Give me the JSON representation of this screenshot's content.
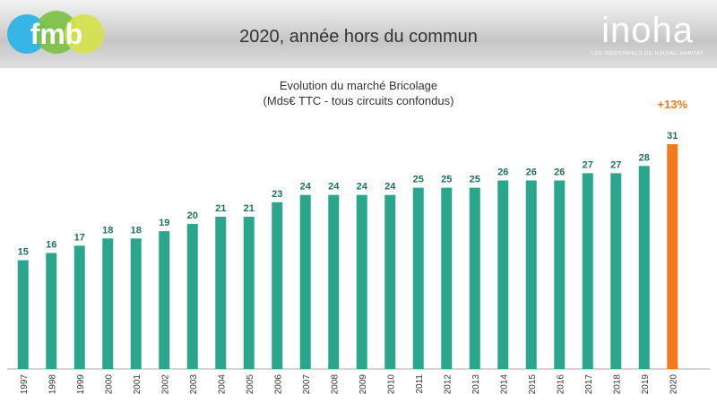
{
  "header": {
    "title": "2020, année hors du commun",
    "logo_left": {
      "text": "fmb"
    },
    "logo_right": {
      "text": "inoha",
      "tagline": "LES INDUSTRIELS DU NOUVEL HABITAT"
    }
  },
  "colors": {
    "bar": "#2aa68c",
    "highlight": "#f47a20",
    "label": "#1f6f5e",
    "axis": "#aaaaaa"
  },
  "chart_data": {
    "type": "bar",
    "title": "Evolution du marché Bricolage",
    "subtitle": "(Mds€ TTC - tous circuits confondus)",
    "categories": [
      "1997",
      "1998",
      "1999",
      "2000",
      "2001",
      "2002",
      "2003",
      "2004",
      "2005",
      "2006",
      "2007",
      "2008",
      "2009",
      "2010",
      "2011",
      "2012",
      "2013",
      "2014",
      "2015",
      "2016",
      "2017",
      "2018",
      "2019",
      "2020"
    ],
    "values": [
      15,
      16,
      17,
      18,
      18,
      19,
      20,
      21,
      21,
      23,
      24,
      24,
      24,
      24,
      25,
      25,
      25,
      26,
      26,
      26,
      27,
      27,
      28,
      31
    ],
    "value_labels": [
      "15",
      "16",
      "17",
      "18",
      "18",
      "19",
      "20",
      "21",
      "21",
      "23",
      "24",
      "24",
      "24",
      "24",
      "25",
      "25",
      "25",
      "26",
      "26",
      "26",
      "27",
      "27",
      "28",
      "31"
    ],
    "highlight_index": 23,
    "annotation": "+13%",
    "ylim": [
      0,
      31
    ]
  }
}
